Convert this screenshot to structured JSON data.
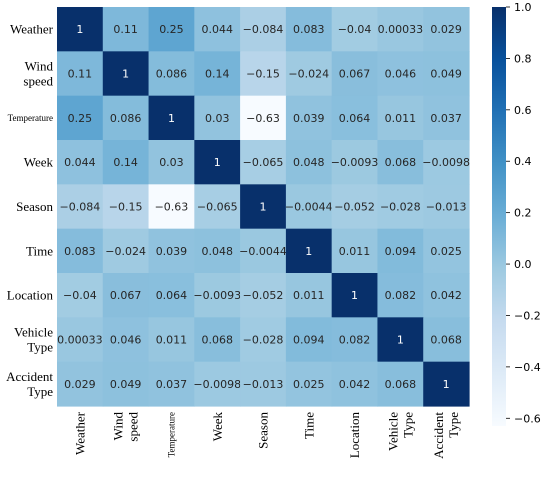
{
  "chart_data": {
    "type": "heatmap",
    "title": "",
    "row_labels": [
      [
        "Weather"
      ],
      [
        "Wind",
        "speed"
      ],
      [
        "Temperature"
      ],
      [
        "Week"
      ],
      [
        "Season"
      ],
      [
        "Time"
      ],
      [
        "Location"
      ],
      [
        "Vehicle",
        "Type"
      ],
      [
        "Accident",
        "Type"
      ]
    ],
    "col_labels": [
      [
        "Weather"
      ],
      [
        "Wind",
        "speed"
      ],
      [
        "Temperature"
      ],
      [
        "Week"
      ],
      [
        "Season"
      ],
      [
        "Time"
      ],
      [
        "Location"
      ],
      [
        "Vehicle",
        "Type"
      ],
      [
        "Accident",
        "Type"
      ]
    ],
    "values": [
      [
        1,
        0.11,
        0.25,
        0.044,
        -0.084,
        0.083,
        -0.04,
        0.00033,
        0.029
      ],
      [
        0.11,
        1,
        0.086,
        0.14,
        -0.15,
        -0.024,
        0.067,
        0.046,
        0.049
      ],
      [
        0.25,
        0.086,
        1,
        0.03,
        -0.63,
        0.039,
        0.064,
        0.011,
        0.037
      ],
      [
        0.044,
        0.14,
        0.03,
        1,
        -0.065,
        0.048,
        -0.0093,
        0.068,
        -0.0098
      ],
      [
        -0.084,
        -0.15,
        -0.63,
        -0.065,
        1,
        -0.0044,
        -0.052,
        -0.028,
        -0.013
      ],
      [
        0.083,
        -0.024,
        0.039,
        0.048,
        -0.0044,
        1,
        0.011,
        0.094,
        0.025
      ],
      [
        -0.04,
        0.067,
        0.064,
        -0.0093,
        -0.052,
        0.011,
        1,
        0.082,
        0.042
      ],
      [
        0.00033,
        0.046,
        0.011,
        0.068,
        -0.028,
        0.094,
        0.082,
        1,
        0.068
      ],
      [
        0.029,
        0.049,
        0.037,
        -0.0098,
        -0.013,
        0.025,
        0.042,
        0.068,
        1
      ]
    ],
    "value_labels": [
      [
        "1",
        "0.11",
        "0.25",
        "0.044",
        "−0.084",
        "0.083",
        "−0.04",
        "0.00033",
        "0.029"
      ],
      [
        "0.11",
        "1",
        "0.086",
        "0.14",
        "−0.15",
        "−0.024",
        "0.067",
        "0.046",
        "0.049"
      ],
      [
        "0.25",
        "0.086",
        "1",
        "0.03",
        "−0.63",
        "0.039",
        "0.064",
        "0.011",
        "0.037"
      ],
      [
        "0.044",
        "0.14",
        "0.03",
        "1",
        "−0.065",
        "0.048",
        "−0.0093",
        "0.068",
        "−0.0098"
      ],
      [
        "−0.084",
        "−0.15",
        "−0.63",
        "−0.065",
        "1",
        "−0.0044",
        "−0.052",
        "−0.028",
        "−0.013"
      ],
      [
        "0.083",
        "−0.024",
        "0.039",
        "0.048",
        "−0.0044",
        "1",
        "0.011",
        "0.094",
        "0.025"
      ],
      [
        "−0.04",
        "0.067",
        "0.064",
        "−0.0093",
        "−0.052",
        "0.011",
        "1",
        "0.082",
        "0.042"
      ],
      [
        "0.00033",
        "0.046",
        "0.011",
        "0.068",
        "−0.028",
        "0.094",
        "0.082",
        "1",
        "0.068"
      ],
      [
        "0.029",
        "0.049",
        "0.037",
        "−0.0098",
        "−0.013",
        "0.025",
        "0.042",
        "0.068",
        "1"
      ]
    ],
    "colorbar": {
      "range": [
        -0.63,
        1.0
      ],
      "ticks": [
        1.0,
        0.8,
        0.6,
        0.4,
        0.2,
        0.0,
        -0.2,
        -0.4,
        -0.6
      ],
      "tick_labels": [
        "1.0",
        "0.8",
        "0.6",
        "0.4",
        "0.2",
        "0.0",
        "−0.2",
        "−0.4",
        "−0.6"
      ],
      "colormap": "Blues",
      "colors": [
        "#f7fbff",
        "#deebf7",
        "#c6dbef",
        "#9ecae1",
        "#6baed6",
        "#4292c6",
        "#2171b5",
        "#08519c",
        "#08306b"
      ]
    }
  }
}
